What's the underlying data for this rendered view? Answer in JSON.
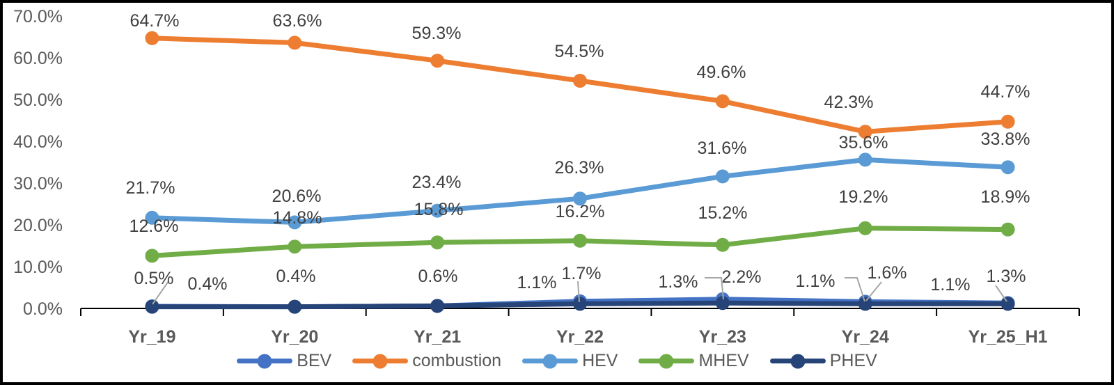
{
  "chart_data": {
    "type": "line",
    "title": "",
    "xlabel": "",
    "ylabel": "",
    "categories": [
      "Yr_19",
      "Yr_20",
      "Yr_21",
      "Yr_22",
      "Yr_23",
      "Yr_24",
      "Yr_25_H1"
    ],
    "series": [
      {
        "name": "BEV",
        "color": "#4472C4",
        "values": [
          0.5,
          0.4,
          0.6,
          1.7,
          2.2,
          1.6,
          1.3
        ],
        "labels": [
          "0.5%",
          "0.4%",
          "0.6%",
          "1.7%",
          "2.2%",
          "1.6%",
          "1.3%"
        ]
      },
      {
        "name": "combustion",
        "color": "#ED7D31",
        "values": [
          64.7,
          63.6,
          59.3,
          54.5,
          49.6,
          42.3,
          44.7
        ],
        "labels": [
          "64.7%",
          "63.6%",
          "59.3%",
          "54.5%",
          "49.6%",
          "42.3%",
          "44.7%"
        ]
      },
      {
        "name": "HEV",
        "color": "#5B9BD5",
        "values": [
          21.7,
          20.6,
          23.4,
          26.3,
          31.6,
          35.6,
          33.8
        ],
        "labels": [
          "21.7%",
          "20.6%",
          "23.4%",
          "26.3%",
          "31.6%",
          "35.6%",
          "33.8%"
        ]
      },
      {
        "name": "MHEV",
        "color": "#70AD47",
        "values": [
          12.6,
          14.8,
          15.8,
          16.2,
          15.2,
          19.2,
          18.9
        ],
        "labels": [
          "12.6%",
          "14.8%",
          "15.8%",
          "16.2%",
          "15.2%",
          "19.2%",
          "18.9%"
        ]
      },
      {
        "name": "PHEV",
        "color": "#264478",
        "values": [
          0.4,
          0.4,
          0.6,
          1.1,
          1.3,
          1.1,
          1.1
        ],
        "labels": [
          "0.4%",
          null,
          null,
          "1.1%",
          "1.3%",
          "1.1%",
          "1.1%"
        ]
      }
    ],
    "y_axis": {
      "min": 0,
      "max": 70,
      "tick_step": 10,
      "ticks": [
        "0.0%",
        "10.0%",
        "20.0%",
        "30.0%",
        "40.0%",
        "50.0%",
        "60.0%",
        "70.0%"
      ]
    },
    "grid": false,
    "legend_position": "bottom",
    "legend": [
      "BEV",
      "combustion",
      "HEV",
      "MHEV",
      "PHEV"
    ],
    "colors": {
      "axis": "#000000",
      "tick_text": "#595959",
      "data_label_text": "#404040",
      "leader_line": "#A6A6A6",
      "background": "#FFFFFF",
      "frame_border": "#000000"
    }
  }
}
